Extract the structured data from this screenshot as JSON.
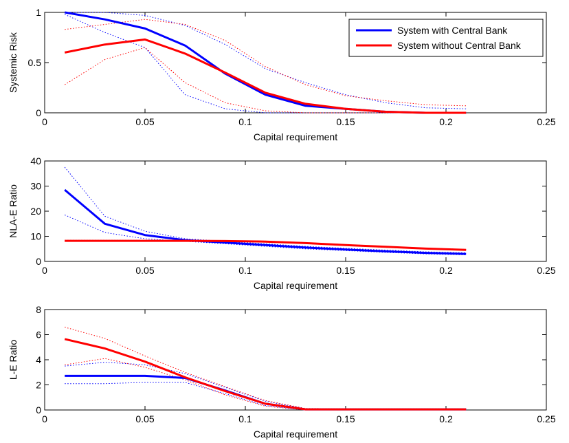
{
  "chart_data": [
    {
      "type": "line",
      "xlabel": "Capital requirement",
      "ylabel": "Systemic Risk",
      "xlim": [
        0,
        0.25
      ],
      "ylim": [
        0,
        1
      ],
      "xticks": [
        "0",
        "0.05",
        "0.1",
        "0.15",
        "0.2",
        "0.25"
      ],
      "yticks": [
        "0",
        "0.5",
        "1"
      ],
      "legend": {
        "position": "top-right",
        "entries": [
          "System with Central Bank",
          "System without Central Bank"
        ]
      },
      "series": [
        {
          "name": "System with Central Bank",
          "color": "#0000ff",
          "style": "solid",
          "x": [
            0.01,
            0.03,
            0.05,
            0.07,
            0.09,
            0.11,
            0.13,
            0.15,
            0.17,
            0.19,
            0.21
          ],
          "y": [
            1.0,
            0.93,
            0.84,
            0.67,
            0.39,
            0.18,
            0.07,
            0.04,
            0.01,
            0.0,
            0.0
          ]
        },
        {
          "name": "System without Central Bank",
          "color": "#ff0000",
          "style": "solid",
          "x": [
            0.01,
            0.03,
            0.05,
            0.07,
            0.09,
            0.11,
            0.13,
            0.15,
            0.17,
            0.19,
            0.21
          ],
          "y": [
            0.6,
            0.68,
            0.73,
            0.59,
            0.4,
            0.2,
            0.09,
            0.04,
            0.01,
            0.0,
            0.0
          ]
        },
        {
          "color": "#0000ff",
          "style": "dotted",
          "x": [
            0.01,
            0.03,
            0.05,
            0.07,
            0.09,
            0.11,
            0.13,
            0.15,
            0.17,
            0.19,
            0.21
          ],
          "y": [
            1.0,
            1.0,
            0.97,
            0.87,
            0.68,
            0.44,
            0.3,
            0.18,
            0.1,
            0.05,
            0.04
          ]
        },
        {
          "color": "#0000ff",
          "style": "dotted",
          "x": [
            0.01,
            0.03,
            0.05,
            0.07,
            0.09,
            0.11,
            0.13,
            0.15,
            0.17,
            0.19,
            0.21
          ],
          "y": [
            0.98,
            0.8,
            0.65,
            0.18,
            0.04,
            0.0,
            0.0,
            0.0,
            0.0,
            0.0,
            0.0
          ]
        },
        {
          "color": "#ff0000",
          "style": "dotted",
          "x": [
            0.01,
            0.03,
            0.05,
            0.07,
            0.09,
            0.11,
            0.13,
            0.15,
            0.17,
            0.19,
            0.21
          ],
          "y": [
            0.83,
            0.88,
            0.93,
            0.88,
            0.72,
            0.46,
            0.28,
            0.17,
            0.12,
            0.08,
            0.07
          ]
        },
        {
          "color": "#ff0000",
          "style": "dotted",
          "x": [
            0.01,
            0.03,
            0.05,
            0.07,
            0.09,
            0.11,
            0.13,
            0.15,
            0.17,
            0.19,
            0.21
          ],
          "y": [
            0.28,
            0.53,
            0.65,
            0.3,
            0.1,
            0.02,
            0.0,
            0.0,
            0.0,
            0.0,
            0.0
          ]
        }
      ]
    },
    {
      "type": "line",
      "xlabel": "Capital requirement",
      "ylabel": "NLA-E Ratio",
      "xlim": [
        0,
        0.25
      ],
      "ylim": [
        0,
        40
      ],
      "xticks": [
        "0",
        "0.05",
        "0.1",
        "0.15",
        "0.2",
        "0.25"
      ],
      "yticks": [
        "0",
        "10",
        "20",
        "30",
        "40"
      ],
      "series": [
        {
          "color": "#0000ff",
          "style": "solid",
          "x": [
            0.01,
            0.03,
            0.05,
            0.07,
            0.09,
            0.11,
            0.13,
            0.15,
            0.17,
            0.19,
            0.21
          ],
          "y": [
            28.5,
            15.0,
            10.5,
            8.5,
            7.5,
            6.5,
            5.5,
            4.7,
            4.0,
            3.4,
            3.0
          ]
        },
        {
          "color": "#ff0000",
          "style": "solid",
          "x": [
            0.01,
            0.03,
            0.05,
            0.07,
            0.09,
            0.11,
            0.13,
            0.15,
            0.17,
            0.19,
            0.21
          ],
          "y": [
            8.2,
            8.2,
            8.2,
            8.2,
            8.1,
            7.9,
            7.3,
            6.5,
            5.8,
            5.1,
            4.6
          ]
        },
        {
          "color": "#0000ff",
          "style": "dotted",
          "x": [
            0.01,
            0.03,
            0.05,
            0.07,
            0.09,
            0.11,
            0.13,
            0.15,
            0.17,
            0.19,
            0.21
          ],
          "y": [
            37.5,
            18.0,
            12.0,
            9.0,
            8.0,
            7.0,
            6.0,
            5.2,
            4.5,
            3.8,
            3.4
          ]
        },
        {
          "color": "#0000ff",
          "style": "dotted",
          "x": [
            0.01,
            0.03,
            0.05,
            0.07,
            0.09,
            0.11,
            0.13,
            0.15,
            0.17,
            0.19,
            0.21
          ],
          "y": [
            18.5,
            11.5,
            9.0,
            8.0,
            7.0,
            6.0,
            5.0,
            4.3,
            3.6,
            3.0,
            2.6
          ]
        },
        {
          "color": "#ff0000",
          "style": "dotted",
          "x": [
            0.01,
            0.03,
            0.05,
            0.07,
            0.09,
            0.11,
            0.13,
            0.15,
            0.17,
            0.19,
            0.21
          ],
          "y": [
            8.4,
            8.4,
            8.4,
            8.4,
            8.3,
            8.1,
            7.5,
            6.7,
            6.0,
            5.3,
            4.8
          ]
        },
        {
          "color": "#ff0000",
          "style": "dotted",
          "x": [
            0.01,
            0.03,
            0.05,
            0.07,
            0.09,
            0.11,
            0.13,
            0.15,
            0.17,
            0.19,
            0.21
          ],
          "y": [
            8.0,
            8.0,
            8.0,
            8.0,
            7.9,
            7.7,
            7.1,
            6.3,
            5.6,
            4.9,
            4.4
          ]
        }
      ]
    },
    {
      "type": "line",
      "xlabel": "Capital requirement",
      "ylabel": "L-E Ratio",
      "xlim": [
        0,
        0.25
      ],
      "ylim": [
        0,
        8
      ],
      "xticks": [
        "0",
        "0.05",
        "0.1",
        "0.15",
        "0.2",
        "0.25"
      ],
      "yticks": [
        "0",
        "2",
        "4",
        "6",
        "8"
      ],
      "series": [
        {
          "color": "#0000ff",
          "style": "solid",
          "x": [
            0.01,
            0.03,
            0.05,
            0.07,
            0.09,
            0.11,
            0.13,
            0.15,
            0.17,
            0.19,
            0.21
          ],
          "y": [
            2.72,
            2.72,
            2.72,
            2.55,
            1.55,
            0.5,
            0.05,
            0.05,
            0.05,
            0.05,
            0.05
          ]
        },
        {
          "color": "#ff0000",
          "style": "solid",
          "x": [
            0.01,
            0.03,
            0.05,
            0.07,
            0.09,
            0.11,
            0.13,
            0.15,
            0.17,
            0.19,
            0.21
          ],
          "y": [
            5.65,
            4.9,
            3.85,
            2.6,
            1.5,
            0.5,
            0.05,
            0.05,
            0.05,
            0.05,
            0.05
          ]
        },
        {
          "color": "#0000ff",
          "style": "dotted",
          "x": [
            0.01,
            0.03,
            0.05,
            0.07,
            0.09,
            0.11,
            0.13,
            0.15,
            0.17,
            0.19,
            0.21
          ],
          "y": [
            3.5,
            3.8,
            3.6,
            2.9,
            1.8,
            0.7,
            0.1,
            0.1,
            0.1,
            0.1,
            0.1
          ]
        },
        {
          "color": "#0000ff",
          "style": "dotted",
          "x": [
            0.01,
            0.03,
            0.05,
            0.07,
            0.09,
            0.11,
            0.13,
            0.15,
            0.17,
            0.19,
            0.21
          ],
          "y": [
            2.1,
            2.1,
            2.2,
            2.2,
            1.3,
            0.35,
            0.0,
            0.0,
            0.0,
            0.0,
            0.0
          ]
        },
        {
          "color": "#ff0000",
          "style": "dotted",
          "x": [
            0.01,
            0.03,
            0.05,
            0.07,
            0.09,
            0.11,
            0.13,
            0.15,
            0.17,
            0.19,
            0.21
          ],
          "y": [
            6.6,
            5.7,
            4.3,
            3.0,
            1.85,
            0.75,
            0.12,
            0.1,
            0.1,
            0.1,
            0.1
          ]
        },
        {
          "color": "#ff0000",
          "style": "dotted",
          "x": [
            0.01,
            0.03,
            0.05,
            0.07,
            0.09,
            0.11,
            0.13,
            0.15,
            0.17,
            0.19,
            0.21
          ],
          "y": [
            3.6,
            4.1,
            3.4,
            2.4,
            1.2,
            0.3,
            0.0,
            0.0,
            0.0,
            0.0,
            0.0
          ]
        }
      ]
    }
  ]
}
